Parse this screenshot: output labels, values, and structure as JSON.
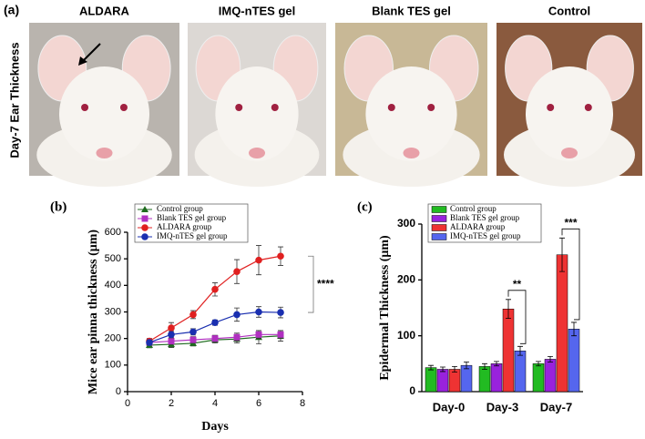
{
  "photo_panel": {
    "label": "(a)",
    "side_label": "Day-7 Ear Thickness",
    "photos": [
      "ALDARA",
      "IMQ-nTES gel",
      "Blank TES gel",
      "Control"
    ]
  },
  "chart_data": [
    {
      "type": "line",
      "panel_label": "(b)",
      "x_label": "Days",
      "y_label": "Mice ear pinna thickness (μm)",
      "x": [
        1,
        2,
        3,
        4,
        5,
        6,
        7
      ],
      "series": [
        {
          "name": "Control group",
          "color": "#1e6b1e",
          "marker": "triangle",
          "values": [
            175,
            178,
            182,
            195,
            198,
            205,
            210
          ],
          "errors": [
            10,
            12,
            10,
            12,
            15,
            25,
            20
          ]
        },
        {
          "name": "Blank TES gel group",
          "color": "#b030c0",
          "marker": "square",
          "values": [
            185,
            190,
            195,
            200,
            205,
            215,
            215
          ],
          "errors": [
            10,
            12,
            12,
            12,
            15,
            15,
            15
          ]
        },
        {
          "name": "ALDARA group",
          "color": "#e02020",
          "marker": "circle",
          "values": [
            190,
            240,
            290,
            385,
            452,
            495,
            510
          ],
          "errors": [
            10,
            20,
            15,
            25,
            45,
            55,
            35
          ]
        },
        {
          "name": "IMQ-nTES gel group",
          "color": "#1a2fb0",
          "marker": "circle",
          "values": [
            185,
            215,
            225,
            260,
            290,
            300,
            298
          ],
          "errors": [
            10,
            12,
            12,
            10,
            25,
            20,
            20
          ]
        }
      ],
      "significance": "****",
      "xlim": [
        0,
        8
      ],
      "xticks": [
        0,
        2,
        4,
        6,
        8
      ],
      "ylim": [
        0,
        600
      ],
      "yticks": [
        0,
        100,
        200,
        300,
        400,
        500,
        600
      ]
    },
    {
      "type": "bar",
      "panel_label": "(c)",
      "y_label": "Epidermal Thickness (μm)",
      "categories": [
        "Day-0",
        "Day-3",
        "Day-7"
      ],
      "series": [
        {
          "name": "Control group",
          "color": "#22bb22",
          "values": [
            43,
            45,
            50
          ],
          "errors": [
            4,
            5,
            4
          ]
        },
        {
          "name": "Blank TES gel group",
          "color": "#9922dd",
          "values": [
            40,
            50,
            58
          ],
          "errors": [
            4,
            4,
            5
          ]
        },
        {
          "name": "ALDARA group",
          "color": "#ee3333",
          "values": [
            40,
            148,
            245
          ],
          "errors": [
            5,
            17,
            30
          ]
        },
        {
          "name": "IMQ-nTES gel group",
          "color": "#5566ee",
          "values": [
            47,
            73,
            112
          ],
          "errors": [
            6,
            8,
            12
          ]
        }
      ],
      "significance": [
        null,
        "**",
        "***"
      ],
      "ylim": [
        0,
        300
      ],
      "yticks": [
        0,
        100,
        200,
        300
      ]
    }
  ]
}
